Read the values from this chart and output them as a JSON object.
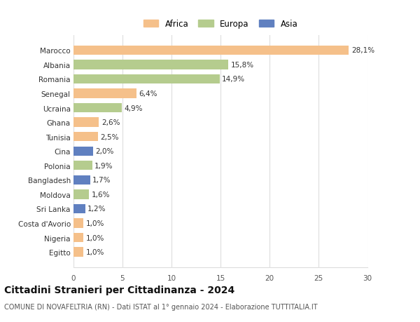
{
  "countries": [
    "Marocco",
    "Albania",
    "Romania",
    "Senegal",
    "Ucraina",
    "Ghana",
    "Tunisia",
    "Cina",
    "Polonia",
    "Bangladesh",
    "Moldova",
    "Sri Lanka",
    "Costa d'Avorio",
    "Nigeria",
    "Egitto"
  ],
  "values": [
    28.1,
    15.8,
    14.9,
    6.4,
    4.9,
    2.6,
    2.5,
    2.0,
    1.9,
    1.7,
    1.6,
    1.2,
    1.0,
    1.0,
    1.0
  ],
  "labels": [
    "28,1%",
    "15,8%",
    "14,9%",
    "6,4%",
    "4,9%",
    "2,6%",
    "2,5%",
    "2,0%",
    "1,9%",
    "1,7%",
    "1,6%",
    "1,2%",
    "1,0%",
    "1,0%",
    "1,0%"
  ],
  "continents": [
    "Africa",
    "Europa",
    "Europa",
    "Africa",
    "Europa",
    "Africa",
    "Africa",
    "Asia",
    "Europa",
    "Asia",
    "Europa",
    "Asia",
    "Africa",
    "Africa",
    "Africa"
  ],
  "colors": {
    "Africa": "#F5C08A",
    "Europa": "#B5CC8E",
    "Asia": "#6080C0"
  },
  "legend_labels": [
    "Africa",
    "Europa",
    "Asia"
  ],
  "legend_colors": [
    "#F5C08A",
    "#B5CC8E",
    "#6080C0"
  ],
  "title": "Cittadini Stranieri per Cittadinanza - 2024",
  "subtitle": "COMUNE DI NOVAFELTRIA (RN) - Dati ISTAT al 1° gennaio 2024 - Elaborazione TUTTITALIA.IT",
  "xlim": [
    0,
    30
  ],
  "xticks": [
    0,
    5,
    10,
    15,
    20,
    25,
    30
  ],
  "background_color": "#ffffff",
  "grid_color": "#dddddd",
  "bar_height": 0.65,
  "label_fontsize": 7.5,
  "tick_fontsize": 7.5,
  "title_fontsize": 10,
  "subtitle_fontsize": 7
}
